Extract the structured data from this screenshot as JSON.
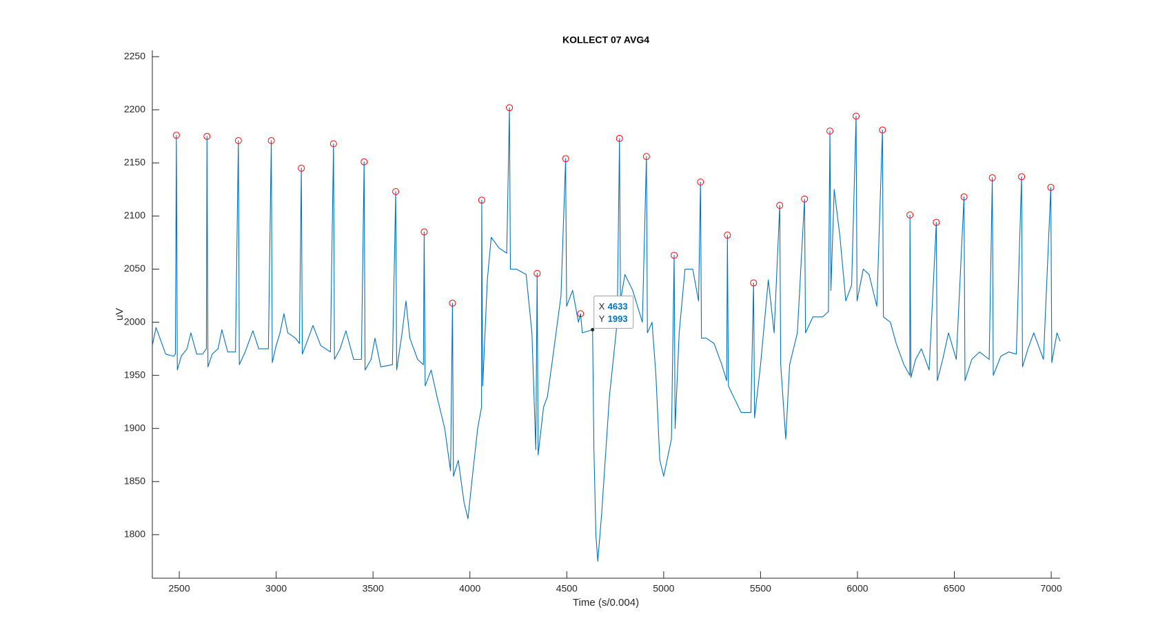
{
  "chart_data": {
    "type": "line",
    "title": "KOLLECT 07 AVG4",
    "x_label": "Time (s/0.004)",
    "y_label": "uV",
    "xlim": [
      2361,
      7046
    ],
    "ylim": [
      1759,
      2256
    ],
    "xticks": [
      2500,
      3000,
      3500,
      4000,
      4500,
      5000,
      5500,
      6000,
      6500,
      7000
    ],
    "yticks": [
      1800,
      1850,
      1900,
      1950,
      2000,
      2050,
      2100,
      2150,
      2200,
      2250
    ],
    "grid": false,
    "series": [
      {
        "color": "#0072bd",
        "x": [
          2361,
          2380,
          2400,
          2430,
          2470,
          2480,
          2485,
          2490,
          2510,
          2540,
          2560,
          2590,
          2620,
          2640,
          2643,
          2648,
          2670,
          2700,
          2720,
          2750,
          2790,
          2805,
          2810,
          2840,
          2880,
          2910,
          2960,
          2975,
          2980,
          3000,
          3020,
          3040,
          3060,
          3100,
          3120,
          3130,
          3135,
          3160,
          3190,
          3230,
          3280,
          3296,
          3301,
          3330,
          3360,
          3400,
          3440,
          3454,
          3459,
          3490,
          3510,
          3540,
          3600,
          3617,
          3622,
          3650,
          3670,
          3690,
          3730,
          3760,
          3764,
          3769,
          3800,
          3830,
          3870,
          3900,
          3910,
          3915,
          3940,
          3970,
          3990,
          4010,
          4040,
          4060,
          4061,
          4066,
          4090,
          4110,
          4150,
          4190,
          4204,
          4209,
          4240,
          4290,
          4320,
          4340,
          4347,
          4352,
          4380,
          4400,
          4430,
          4470,
          4494,
          4499,
          4530,
          4560,
          4571,
          4580,
          4633,
          4640,
          4650,
          4660,
          4680,
          4720,
          4760,
          4772,
          4777,
          4800,
          4840,
          4890,
          4911,
          4916,
          4940,
          4960,
          4980,
          5000,
          5040,
          5054,
          5059,
          5080,
          5110,
          5150,
          5180,
          5190,
          5195,
          5220,
          5260,
          5300,
          5325,
          5329,
          5334,
          5360,
          5400,
          5450,
          5464,
          5469,
          5500,
          5540,
          5570,
          5599,
          5604,
          5630,
          5650,
          5690,
          5727,
          5732,
          5770,
          5820,
          5850,
          5858,
          5863,
          5880,
          5910,
          5940,
          5970,
          5993,
          5998,
          6030,
          6060,
          6100,
          6129,
          6134,
          6170,
          6200,
          6240,
          6270,
          6271,
          6276,
          6300,
          6330,
          6370,
          6407,
          6412,
          6440,
          6470,
          6510,
          6550,
          6555,
          6590,
          6630,
          6680,
          6696,
          6701,
          6740,
          6780,
          6820,
          6847,
          6852,
          6880,
          6910,
          6960,
          6998,
          7003,
          7030,
          7046
        ],
        "values": [
          1978,
          1995,
          1985,
          1970,
          1968,
          1970,
          2176,
          1955,
          1968,
          1975,
          1990,
          1970,
          1970,
          1975,
          2175,
          1958,
          1970,
          1975,
          1993,
          1972,
          1972,
          2171,
          1960,
          1972,
          1992,
          1975,
          1975,
          2171,
          1962,
          1978,
          1990,
          2008,
          1990,
          1985,
          1980,
          2145,
          1970,
          1982,
          1997,
          1978,
          1972,
          2168,
          1965,
          1975,
          1992,
          1965,
          1965,
          2151,
          1955,
          1965,
          1985,
          1958,
          1960,
          2123,
          1955,
          1990,
          2020,
          1985,
          1965,
          1960,
          2085,
          1940,
          1955,
          1930,
          1900,
          1860,
          2018,
          1855,
          1870,
          1830,
          1815,
          1850,
          1900,
          1920,
          2115,
          1940,
          2040,
          2080,
          2070,
          2065,
          2202,
          2050,
          2050,
          2045,
          1990,
          1880,
          2046,
          1875,
          1920,
          1930,
          1970,
          2025,
          2154,
          2015,
          2030,
          2000,
          2008,
          1990,
          1993,
          1880,
          1800,
          1775,
          1820,
          1930,
          2000,
          2173,
          2020,
          2045,
          2030,
          2000,
          2156,
          1990,
          2000,
          1950,
          1870,
          1855,
          1890,
          2063,
          1900,
          1990,
          2050,
          2050,
          2020,
          2132,
          1985,
          1985,
          1980,
          1960,
          1945,
          2082,
          1940,
          1930,
          1915,
          1915,
          2037,
          1910,
          1960,
          2040,
          1990,
          2110,
          1960,
          1890,
          1960,
          1990,
          2116,
          1990,
          2005,
          2005,
          2010,
          2180,
          2030,
          2125,
          2080,
          2020,
          2035,
          2194,
          2020,
          2050,
          2045,
          2015,
          2181,
          2005,
          2000,
          1980,
          1960,
          1950,
          2101,
          1948,
          1965,
          1975,
          1955,
          2094,
          1945,
          1965,
          1990,
          1965,
          2118,
          1945,
          1965,
          1972,
          1965,
          2136,
          1950,
          1968,
          1972,
          1970,
          2137,
          1958,
          1975,
          1990,
          1965,
          2127,
          1962,
          1990,
          1982
        ]
      },
      {
        "color": "#ff0000",
        "marker": "o",
        "x": [
          2485,
          2643,
          2805,
          2975,
          3130,
          3296,
          3454,
          3617,
          3764,
          3910,
          4061,
          4204,
          4347,
          4494,
          4571,
          4772,
          4911,
          5054,
          5190,
          5329,
          5464,
          5599,
          5727,
          5858,
          5993,
          6129,
          6271,
          6407,
          6550,
          6696,
          6847,
          6998
        ],
        "values": [
          2176,
          2175,
          2171,
          2171,
          2145,
          2168,
          2151,
          2123,
          2085,
          2018,
          2115,
          2202,
          2046,
          2154,
          2008,
          2173,
          2156,
          2063,
          2132,
          2082,
          2037,
          2110,
          2116,
          2180,
          2194,
          2181,
          2101,
          2094,
          2118,
          2136,
          2137,
          2127
        ]
      }
    ],
    "datatip": {
      "x_label": "X",
      "x": 4633,
      "y_label": "Y",
      "y": 1993
    }
  }
}
